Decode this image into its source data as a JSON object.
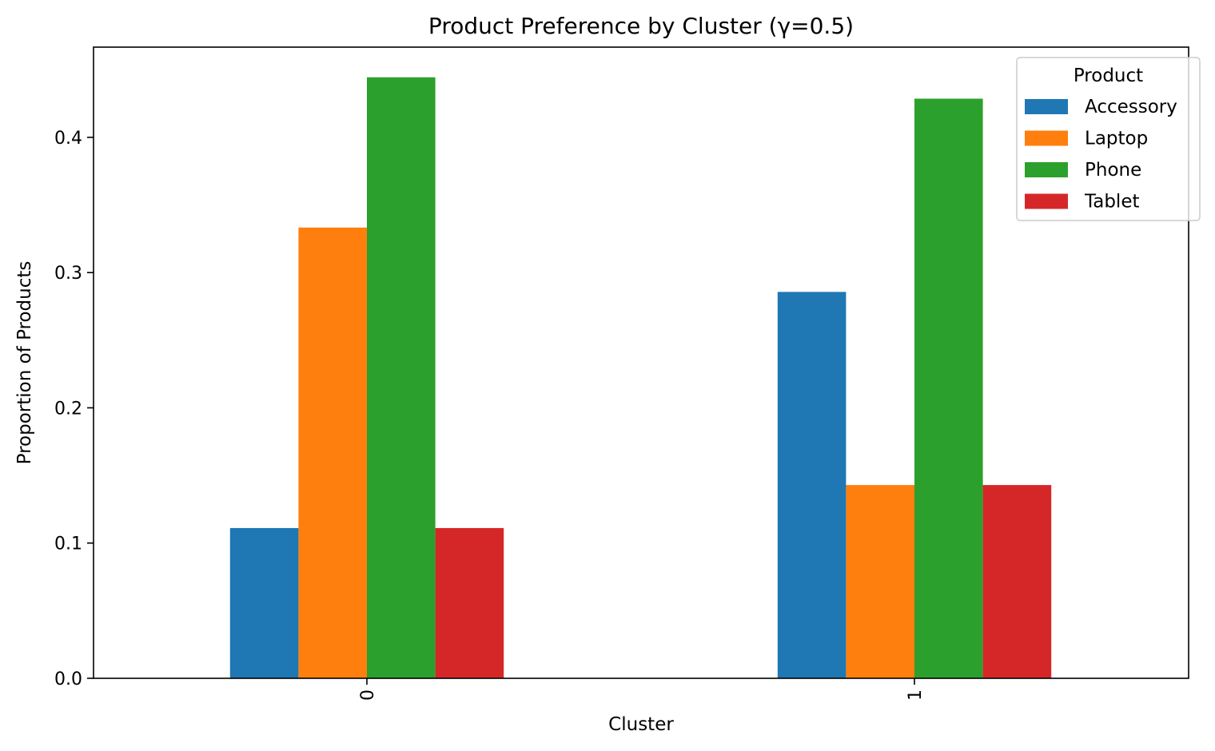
{
  "chart_data": {
    "type": "bar",
    "title": "Product Preference by Cluster (γ=0.5)",
    "xlabel": "Cluster",
    "ylabel": "Proportion of Products",
    "categories": [
      "0",
      "1"
    ],
    "series": [
      {
        "name": "Accessory",
        "color": "#1f77b4",
        "values": [
          0.1111,
          0.2857
        ]
      },
      {
        "name": "Laptop",
        "color": "#ff7f0e",
        "values": [
          0.3333,
          0.1429
        ]
      },
      {
        "name": "Phone",
        "color": "#2ca02c",
        "values": [
          0.4444,
          0.4286
        ]
      },
      {
        "name": "Tablet",
        "color": "#d62728",
        "values": [
          0.1111,
          0.1429
        ]
      }
    ],
    "ylim": [
      0,
      0.4667
    ],
    "yticks": [
      0.0,
      0.1,
      0.2,
      0.3,
      0.4
    ],
    "ytick_labels": [
      "0.0",
      "0.1",
      "0.2",
      "0.3",
      "0.4"
    ],
    "legend": {
      "title": "Product",
      "position": "top-right"
    },
    "grid": false
  }
}
